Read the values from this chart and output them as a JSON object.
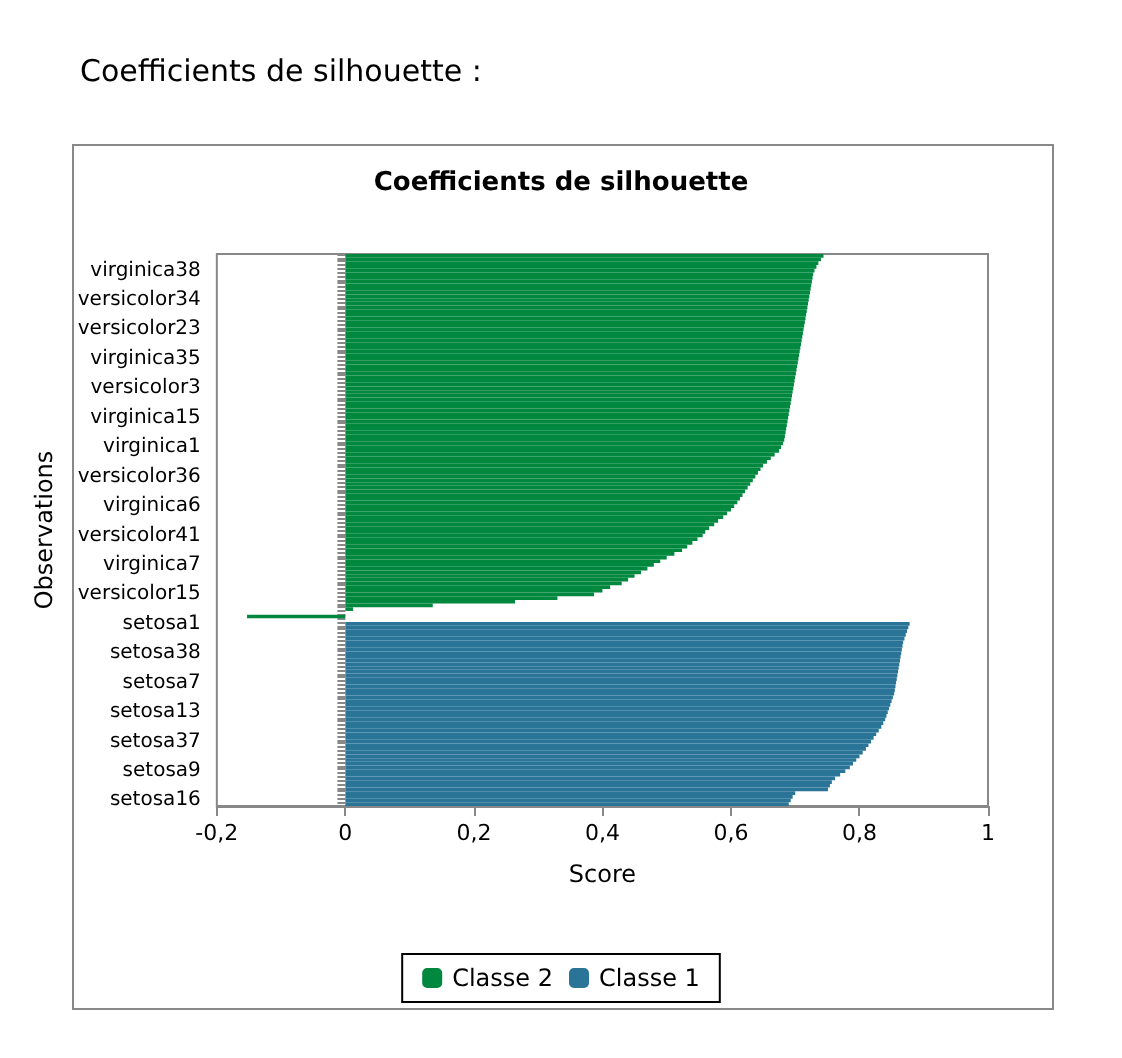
{
  "chart_data": {
    "type": "bar",
    "orientation": "horizontal",
    "title": "Coefficients de silhouette",
    "xlabel": "Score",
    "ylabel": "Observations",
    "annotations": [
      "Coefficients de silhouette :"
    ],
    "categories": [
      null,
      null,
      null,
      null,
      "virginica38",
      null,
      null,
      null,
      null,
      null,
      null,
      null,
      "versicolor34",
      null,
      null,
      null,
      null,
      null,
      null,
      null,
      "versicolor23",
      null,
      null,
      null,
      null,
      null,
      null,
      null,
      "virginica35",
      null,
      null,
      null,
      null,
      null,
      null,
      null,
      "versicolor3",
      null,
      null,
      null,
      null,
      null,
      null,
      null,
      "virginica15",
      null,
      null,
      null,
      null,
      null,
      null,
      null,
      "virginica1",
      null,
      null,
      null,
      null,
      null,
      null,
      null,
      "versicolor36",
      null,
      null,
      null,
      null,
      null,
      null,
      null,
      "virginica6",
      null,
      null,
      null,
      null,
      null,
      null,
      null,
      "versicolor41",
      null,
      null,
      null,
      null,
      null,
      null,
      null,
      "virginica7",
      null,
      null,
      null,
      null,
      null,
      null,
      null,
      "versicolor15",
      null,
      null,
      null,
      null,
      null,
      null,
      null,
      "setosa1",
      null,
      null,
      null,
      null,
      null,
      null,
      null,
      "setosa38",
      null,
      null,
      null,
      null,
      null,
      null,
      null,
      "setosa7",
      null,
      null,
      null,
      null,
      null,
      null,
      null,
      "setosa13",
      null,
      null,
      null,
      null,
      null,
      null,
      null,
      "setosa37",
      null,
      null,
      null,
      null,
      null,
      null,
      null,
      "setosa9",
      null,
      null,
      null,
      null,
      null,
      null,
      null,
      "setosa16",
      null
    ],
    "series": [
      {
        "name": "Classe 2",
        "color": "#00883f",
        "values": [
          0.744,
          0.74,
          0.736,
          0.733,
          0.73,
          0.728,
          0.727,
          0.726,
          0.725,
          0.724,
          0.723,
          0.722,
          0.721,
          0.72,
          0.719,
          0.718,
          0.717,
          0.716,
          0.715,
          0.714,
          0.713,
          0.712,
          0.711,
          0.71,
          0.709,
          0.708,
          0.707,
          0.706,
          0.705,
          0.704,
          0.703,
          0.702,
          0.701,
          0.7,
          0.699,
          0.698,
          0.697,
          0.696,
          0.695,
          0.694,
          0.693,
          0.692,
          0.691,
          0.69,
          0.689,
          0.688,
          0.687,
          0.686,
          0.685,
          0.684,
          0.683,
          0.681,
          0.678,
          0.675,
          0.668,
          0.662,
          0.656,
          0.65,
          0.646,
          0.642,
          0.638,
          0.634,
          0.63,
          0.626,
          0.622,
          0.618,
          0.614,
          0.61,
          0.605,
          0.6,
          0.594,
          0.588,
          0.58,
          0.574,
          0.566,
          0.56,
          0.556,
          0.548,
          0.54,
          0.532,
          0.524,
          0.512,
          0.5,
          0.49,
          0.48,
          0.47,
          0.46,
          0.45,
          0.44,
          0.43,
          0.412,
          0.4,
          0.387,
          0.33,
          0.264,
          0.136,
          0.012,
          null,
          -0.153,
          null,
          null,
          null,
          null,
          null,
          null,
          null,
          null,
          null,
          null,
          null,
          null,
          null,
          null,
          null,
          null,
          null,
          null,
          null,
          null,
          null,
          null,
          null,
          null,
          null,
          null,
          null,
          null,
          null,
          null,
          null,
          null,
          null,
          null,
          null,
          null,
          null,
          null,
          null,
          null,
          null,
          null,
          null,
          null,
          null,
          null,
          null,
          null,
          null,
          null,
          null
        ]
      },
      {
        "name": "Classe 1",
        "color": "#2a7597",
        "values": [
          null,
          null,
          null,
          null,
          null,
          null,
          null,
          null,
          null,
          null,
          null,
          null,
          null,
          null,
          null,
          null,
          null,
          null,
          null,
          null,
          null,
          null,
          null,
          null,
          null,
          null,
          null,
          null,
          null,
          null,
          null,
          null,
          null,
          null,
          null,
          null,
          null,
          null,
          null,
          null,
          null,
          null,
          null,
          null,
          null,
          null,
          null,
          null,
          null,
          null,
          null,
          null,
          null,
          null,
          null,
          null,
          null,
          null,
          null,
          null,
          null,
          null,
          null,
          null,
          null,
          null,
          null,
          null,
          null,
          null,
          null,
          null,
          null,
          null,
          null,
          null,
          null,
          null,
          null,
          null,
          null,
          null,
          null,
          null,
          null,
          null,
          null,
          null,
          null,
          null,
          null,
          null,
          null,
          null,
          null,
          null,
          null,
          null,
          null,
          null,
          0.878,
          0.876,
          0.874,
          0.872,
          0.87,
          0.868,
          0.867,
          0.866,
          0.865,
          0.864,
          0.863,
          0.862,
          0.861,
          0.86,
          0.859,
          0.858,
          0.857,
          0.856,
          0.855,
          0.854,
          0.852,
          0.85,
          0.848,
          0.846,
          0.844,
          0.842,
          0.84,
          0.837,
          0.834,
          0.83,
          0.826,
          0.822,
          0.818,
          0.814,
          0.81,
          0.805,
          0.8,
          0.795,
          0.79,
          0.785,
          0.778,
          0.77,
          0.762,
          0.757,
          0.754,
          0.751,
          0.7,
          0.696,
          0.693,
          0.69
        ]
      }
    ],
    "xlim": [
      -0.2,
      1
    ],
    "xticks": [
      {
        "value": -0.2,
        "label": "-0,2"
      },
      0,
      {
        "value": 0.2,
        "label": "0,2"
      },
      {
        "value": 0.4,
        "label": "0,4"
      },
      {
        "value": 0.6,
        "label": "0,6"
      },
      {
        "value": 0.8,
        "label": "0,8"
      },
      1
    ],
    "grid": false,
    "legend": "bottom"
  }
}
